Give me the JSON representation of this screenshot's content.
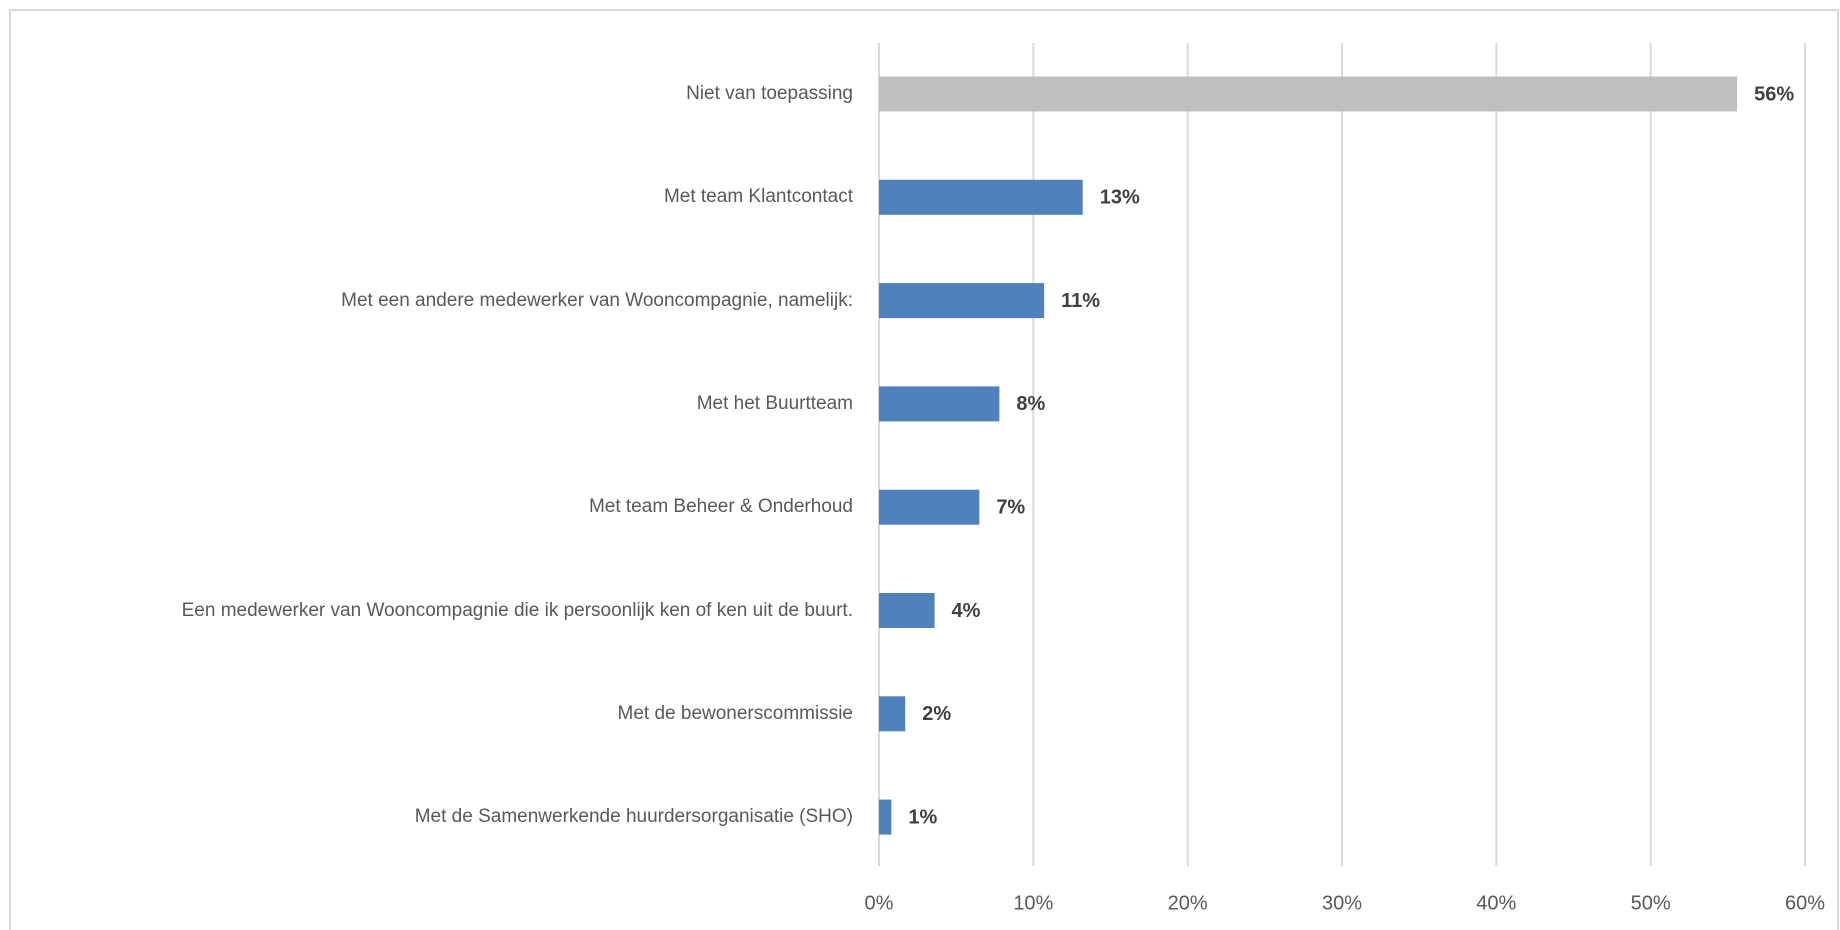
{
  "chart_data": {
    "type": "hbar",
    "categories": [
      "Niet van toepassing",
      "Met team Klantcontact",
      "Met een andere medewerker van Wooncompagnie, namelijk:",
      "Met het Buurtteam",
      "Met team Beheer & Onderhoud",
      "Een medewerker van Wooncompagnie die ik persoonlijk ken of ken uit de buurt.",
      "Met de bewonerscommissie",
      "Met de Samenwerkende huurdersorganisatie (SHO)"
    ],
    "values": [
      55.6,
      13.2,
      10.7,
      7.8,
      6.5,
      3.6,
      1.7,
      0.8
    ],
    "value_labels": [
      "56%",
      "13%",
      "11%",
      "8%",
      "7%",
      "4%",
      "2%",
      "1%"
    ],
    "colors": [
      "#bfbfbf",
      "#4f81bd",
      "#4f81bd",
      "#4f81bd",
      "#4f81bd",
      "#4f81bd",
      "#4f81bd",
      "#4f81bd"
    ],
    "xlim": [
      0,
      60
    ],
    "xticks": [
      {
        "value": 0,
        "label": "0%"
      },
      {
        "value": 10,
        "label": "10%"
      },
      {
        "value": 20,
        "label": "20%"
      },
      {
        "value": 30,
        "label": "30%"
      },
      {
        "value": 40,
        "label": "40%"
      },
      {
        "value": 50,
        "label": "50%"
      },
      {
        "value": 60,
        "label": "60%"
      }
    ],
    "grid": true
  }
}
